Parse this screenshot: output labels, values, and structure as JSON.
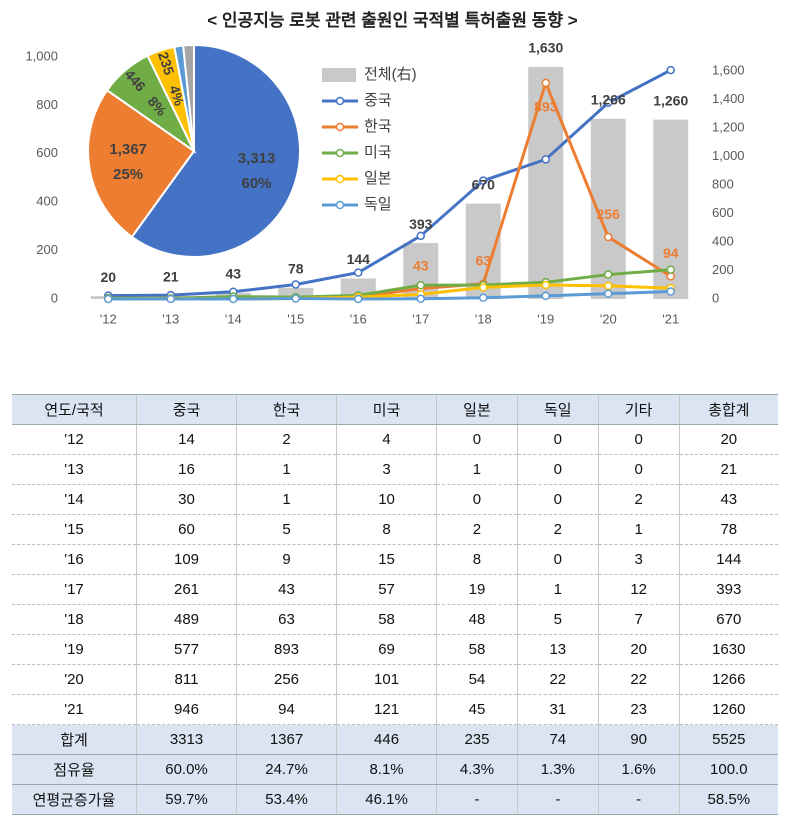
{
  "title": "< 인공지능 로봇 관련 출원인 국적별 특허출원 동향 >",
  "chart_data": [
    {
      "type": "combo",
      "categories": [
        "'12",
        "'13",
        "'14",
        "'15",
        "'16",
        "'17",
        "'18",
        "'19",
        "'20",
        "'21"
      ],
      "ylim": [
        0,
        1000
      ],
      "yticks": [
        0,
        200,
        400,
        600,
        800,
        {
          "value": 1000,
          "label": "1,000"
        }
      ],
      "y2lim": [
        0,
        1700
      ],
      "y2ticks": [
        0,
        200,
        400,
        600,
        800,
        {
          "value": 1000,
          "label": "1,000"
        },
        {
          "value": 1200,
          "label": "1,200"
        },
        {
          "value": 1400,
          "label": "1,400"
        },
        {
          "value": 1600,
          "label": "1,600"
        }
      ],
      "legend_position": "upper center",
      "series": [
        {
          "name": "전체(右)",
          "type": "bar",
          "axis": "y2",
          "color": "#c9c9c9",
          "values": [
            20,
            21,
            43,
            78,
            144,
            393,
            670,
            1630,
            1266,
            1260
          ],
          "value_labels": [
            "20",
            "21",
            "43",
            "78",
            "144",
            "393",
            "670",
            "1,630",
            "1,266",
            "1,260"
          ]
        },
        {
          "name": "중국",
          "type": "line",
          "color": "#4472c4",
          "values": [
            14,
            16,
            30,
            60,
            109,
            261,
            489,
            577,
            811,
            946
          ]
        },
        {
          "name": "한국",
          "type": "line",
          "color": "#ed7d31",
          "values": [
            2,
            1,
            1,
            5,
            9,
            43,
            63,
            893,
            256,
            94
          ],
          "value_labels": [
            null,
            null,
            null,
            null,
            null,
            "43",
            "63",
            "893",
            "256",
            "94"
          ]
        },
        {
          "name": "미국",
          "type": "line",
          "color": "#70ad47",
          "values": [
            4,
            3,
            10,
            8,
            15,
            57,
            58,
            69,
            101,
            121
          ]
        },
        {
          "name": "일본",
          "type": "line",
          "color": "#ffc000",
          "values": [
            0,
            1,
            0,
            2,
            8,
            19,
            48,
            58,
            54,
            45
          ]
        },
        {
          "name": "독일",
          "type": "line",
          "color": "#5b9bd5",
          "values": [
            0,
            0,
            0,
            2,
            0,
            1,
            5,
            13,
            22,
            31
          ]
        }
      ]
    },
    {
      "type": "pie",
      "values": [
        3313,
        1367,
        446,
        235,
        74,
        90
      ],
      "colors": [
        "#4472c4",
        "#ed7d31",
        "#70ad47",
        "#ffc000",
        "#5b9bd5",
        "#a5a5a5"
      ],
      "value_labels": [
        "3,313",
        "1,367",
        "446",
        "235",
        null,
        null
      ],
      "percent_labels": [
        "60%",
        "25%",
        "8%",
        "4%",
        null,
        null
      ]
    }
  ],
  "table": {
    "header": [
      "연도/국적",
      "중국",
      "한국",
      "미국",
      "일본",
      "독일",
      "기타",
      "총합계"
    ],
    "rows": [
      [
        "'12",
        "14",
        "2",
        "4",
        "0",
        "0",
        "0",
        "20"
      ],
      [
        "'13",
        "16",
        "1",
        "3",
        "1",
        "0",
        "0",
        "21"
      ],
      [
        "'14",
        "30",
        "1",
        "10",
        "0",
        "0",
        "2",
        "43"
      ],
      [
        "'15",
        "60",
        "5",
        "8",
        "2",
        "2",
        "1",
        "78"
      ],
      [
        "'16",
        "109",
        "9",
        "15",
        "8",
        "0",
        "3",
        "144"
      ],
      [
        "'17",
        "261",
        "43",
        "57",
        "19",
        "1",
        "12",
        "393"
      ],
      [
        "'18",
        "489",
        "63",
        "58",
        "48",
        "5",
        "7",
        "670"
      ],
      [
        "'19",
        "577",
        "893",
        "69",
        "58",
        "13",
        "20",
        "1630"
      ],
      [
        "'20",
        "811",
        "256",
        "101",
        "54",
        "22",
        "22",
        "1266"
      ],
      [
        "'21",
        "946",
        "94",
        "121",
        "45",
        "31",
        "23",
        "1260"
      ]
    ],
    "summary_rows": [
      [
        "합계",
        "3313",
        "1367",
        "446",
        "235",
        "74",
        "90",
        "5525"
      ],
      [
        "점유율",
        "60.0%",
        "24.7%",
        "8.1%",
        "4.3%",
        "1.3%",
        "1.6%",
        "100.0"
      ],
      [
        "연평균증가율",
        "59.7%",
        "53.4%",
        "46.1%",
        "-",
        "-",
        "-",
        "58.5%"
      ]
    ]
  }
}
